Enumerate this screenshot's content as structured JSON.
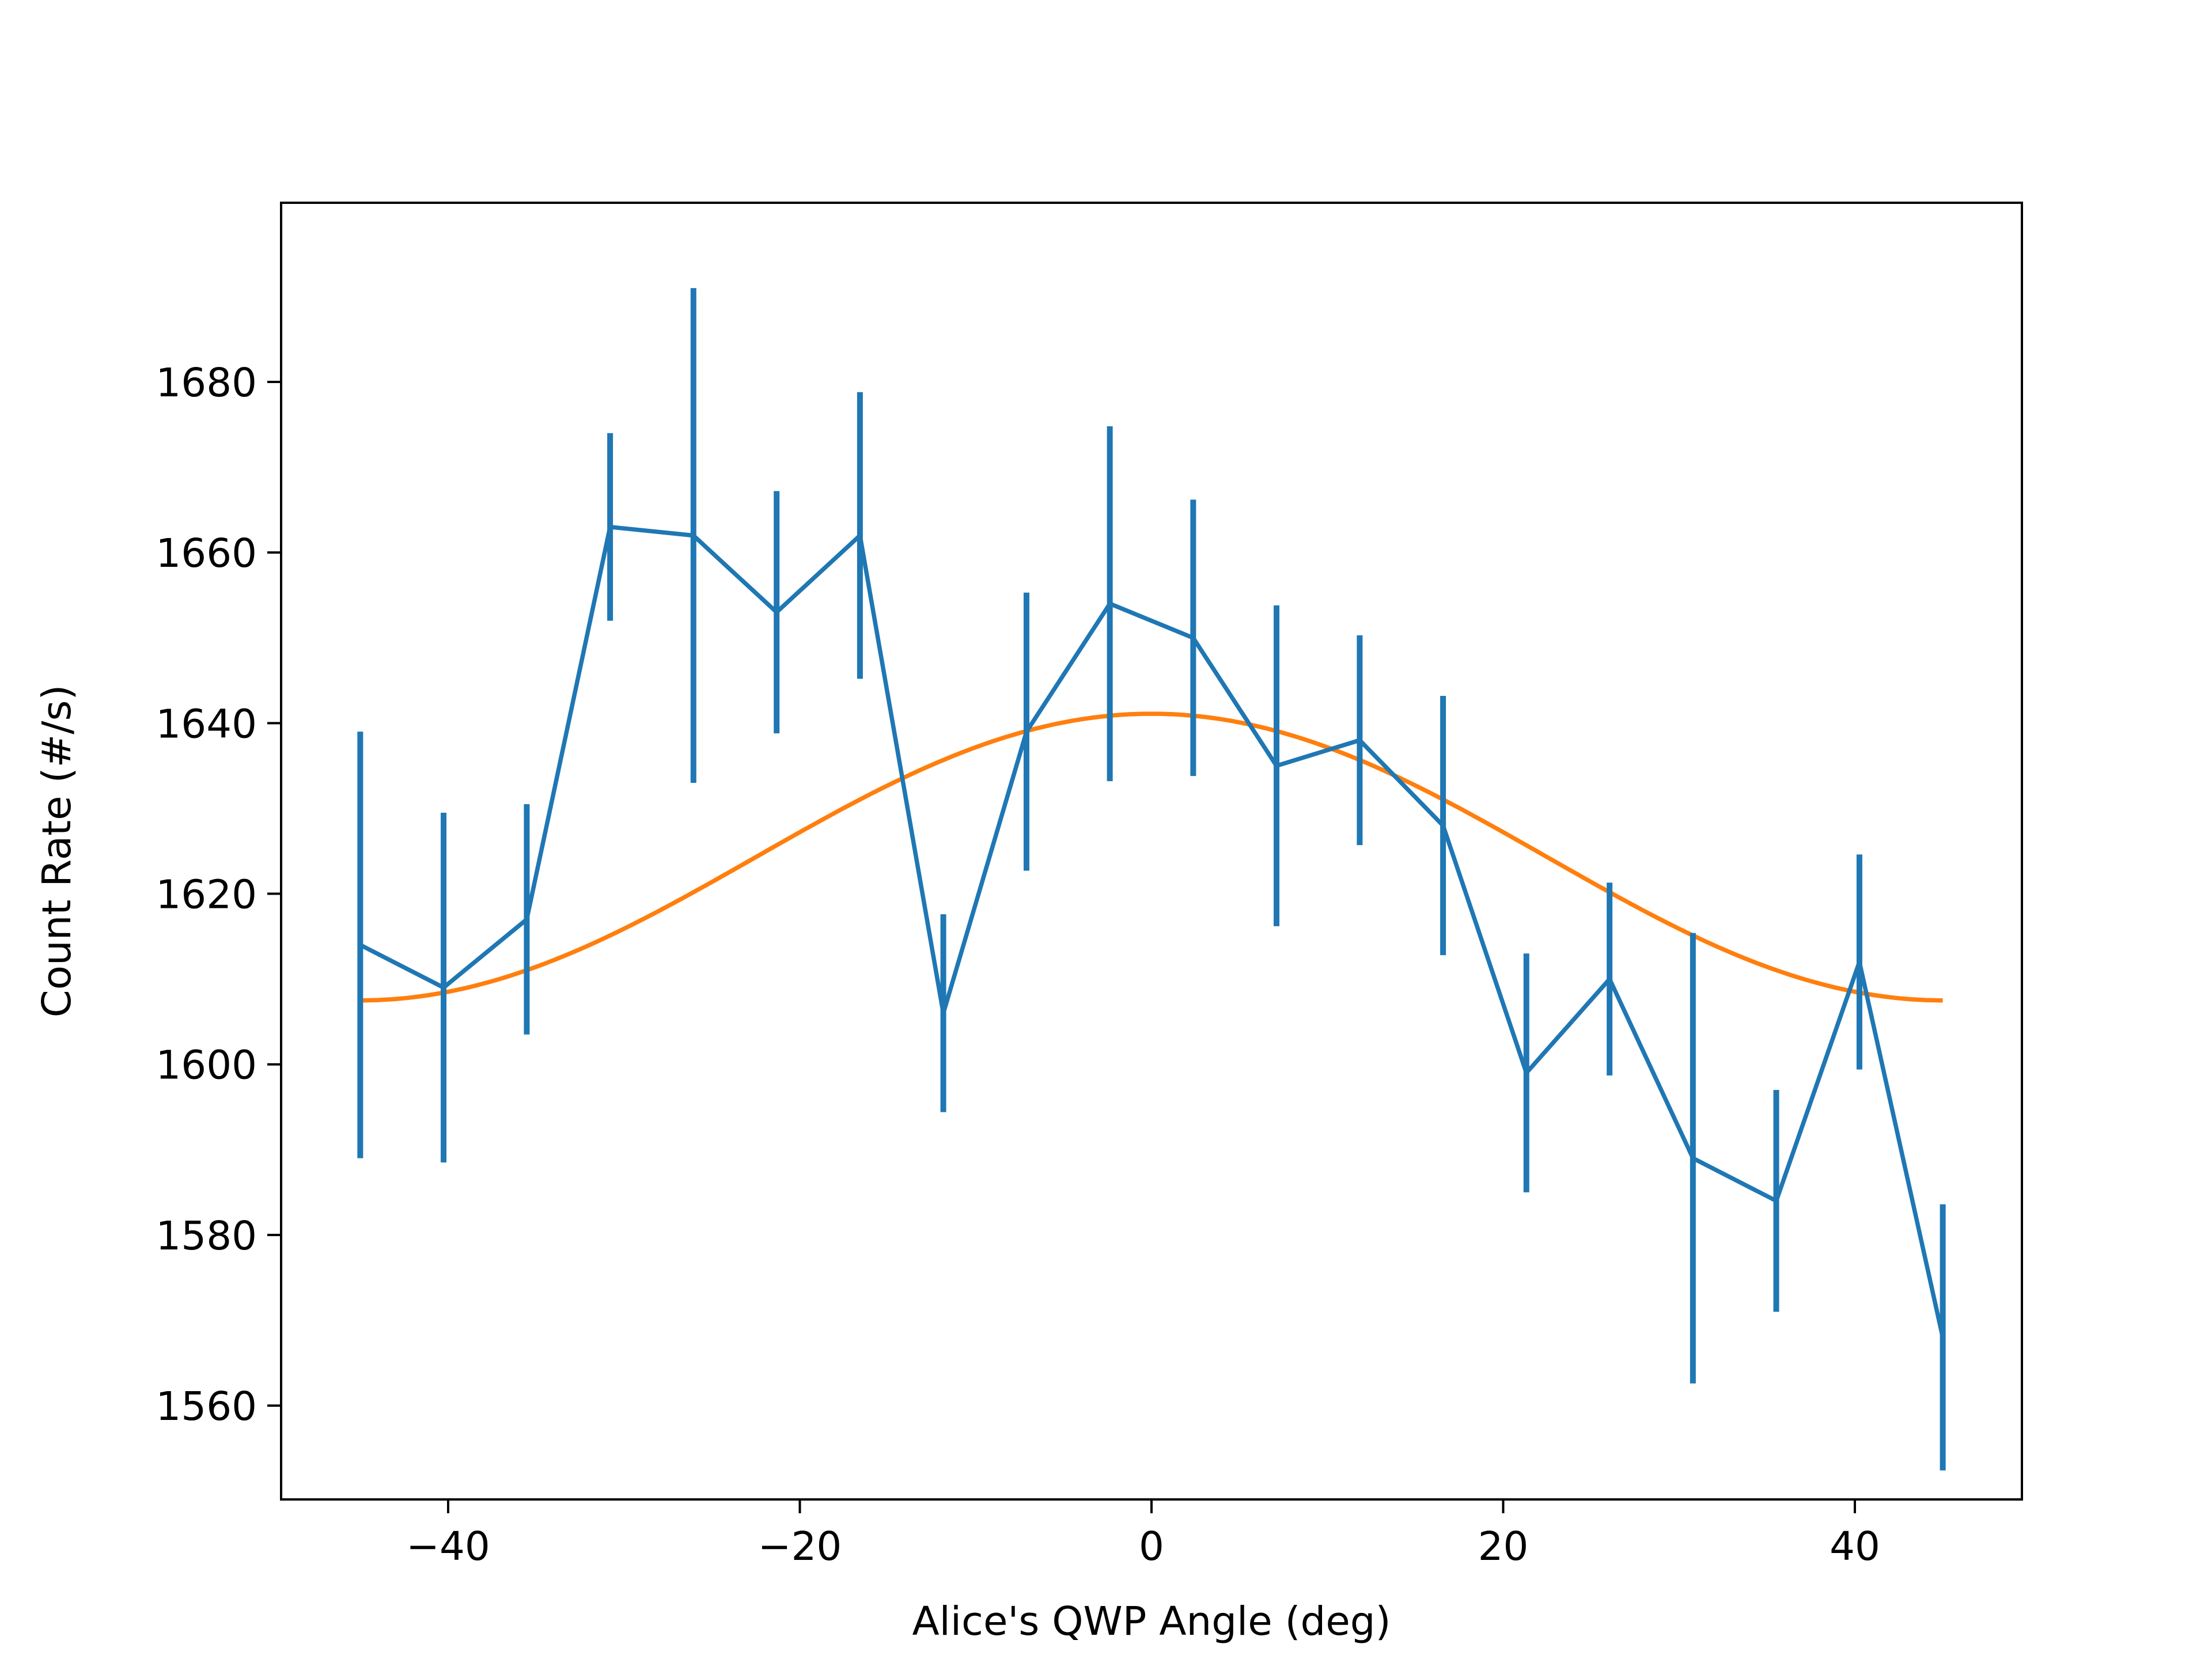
{
  "chart_data": {
    "type": "line",
    "title": "",
    "xlabel": "Alice's QWP Angle (deg)",
    "ylabel": "Count Rate (#/s)",
    "xlim": [
      -49.5,
      49.5
    ],
    "ylim": [
      1549,
      1701
    ],
    "x_ticks": [
      -40,
      -20,
      0,
      20,
      40
    ],
    "x_tick_labels": [
      "−40",
      "−20",
      "0",
      "20",
      "40"
    ],
    "y_ticks": [
      1560,
      1580,
      1600,
      1620,
      1640,
      1660,
      1680
    ],
    "y_tick_labels": [
      "1560",
      "1580",
      "1600",
      "1620",
      "1640",
      "1660",
      "1680"
    ],
    "grid": false,
    "series": [
      {
        "kind": "errorbar",
        "color": "#1f77b4",
        "x": [
          -45.0,
          -40.26,
          -35.53,
          -30.79,
          -26.05,
          -21.32,
          -16.58,
          -11.84,
          -7.11,
          -2.37,
          2.37,
          7.11,
          11.84,
          16.58,
          21.32,
          26.05,
          30.79,
          35.53,
          40.26,
          45.0
        ],
        "y": [
          1614,
          1609,
          1617,
          1663,
          1662,
          1653,
          1662,
          1606,
          1639,
          1654,
          1650,
          1635,
          1638,
          1628,
          1599,
          1610,
          1589,
          1584,
          1612,
          1568
        ],
        "yerr": [
          25,
          20.5,
          13.5,
          11,
          29,
          14.2,
          16.8,
          11.6,
          16.3,
          20.8,
          16.2,
          18.8,
          12.3,
          15.2,
          14,
          11.3,
          26.4,
          13,
          12.6,
          15.6
        ]
      },
      {
        "kind": "fit",
        "color": "#ff7f0e",
        "model": "A + B*cos(4*pi*x/180)",
        "params": {
          "A": 1624.3,
          "B": 16.8
        },
        "x_range": [
          -45,
          45
        ]
      }
    ]
  }
}
